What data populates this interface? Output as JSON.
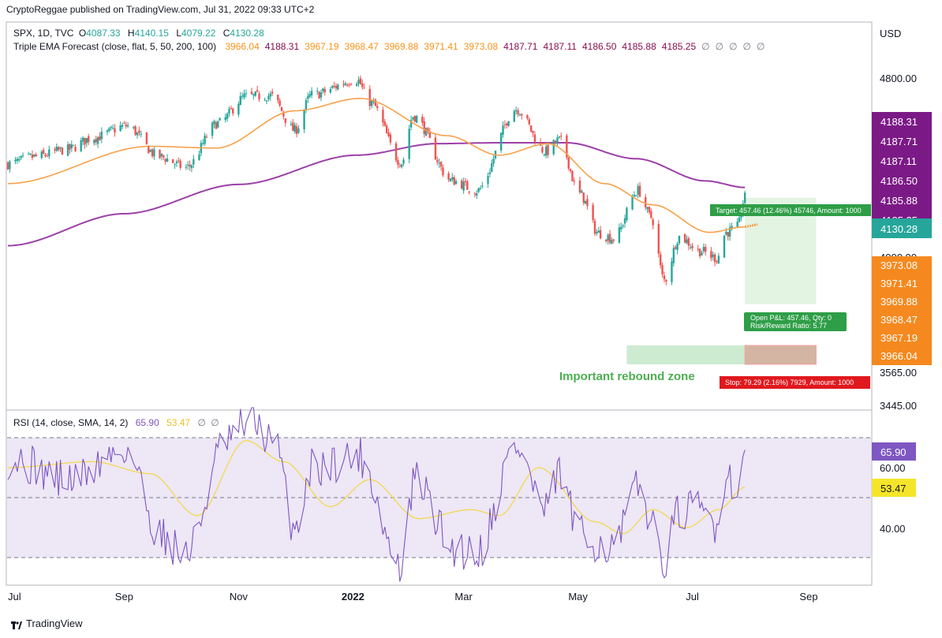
{
  "attribution": "CryptoReggae published on TradingView.com, Jul 31, 2022 09:33 UTC+2",
  "footer_brand": "TradingView",
  "header": {
    "symbol": "SPX, 1D, TVC",
    "ohlc": [
      {
        "label": "O",
        "value": "4087.33"
      },
      {
        "label": "H",
        "value": "4140.15"
      },
      {
        "label": "L",
        "value": "4079.22"
      },
      {
        "label": "C",
        "value": "4130.28"
      }
    ],
    "indicator": "Triple EMA Forecast (close, flat, 5, 50, 200, 100)",
    "indicator_values": [
      {
        "v": "3966.04",
        "color": "#f7931a"
      },
      {
        "v": "4188.31",
        "color": "#880e4f"
      },
      {
        "v": "3967.19",
        "color": "#f7931a"
      },
      {
        "v": "3968.47",
        "color": "#f7931a"
      },
      {
        "v": "3969.88",
        "color": "#f7931a"
      },
      {
        "v": "3971.41",
        "color": "#f7931a"
      },
      {
        "v": "3973.08",
        "color": "#f7931a"
      },
      {
        "v": "4187.71",
        "color": "#880e4f"
      },
      {
        "v": "4187.11",
        "color": "#880e4f"
      },
      {
        "v": "4186.50",
        "color": "#880e4f"
      },
      {
        "v": "4185.88",
        "color": "#880e4f"
      },
      {
        "v": "4185.25",
        "color": "#880e4f"
      },
      {
        "v": "∅",
        "color": "#787b86"
      },
      {
        "v": "∅",
        "color": "#787b86"
      },
      {
        "v": "∅",
        "color": "#787b86"
      },
      {
        "v": "∅",
        "color": "#787b86"
      },
      {
        "v": "∅",
        "color": "#787b86"
      }
    ],
    "rsi_title": "RSI (14, close, SMA, 14, 2)",
    "rsi_value": "65.90",
    "rsi_sma_value": "53.47"
  },
  "colors": {
    "up": "#26a69a",
    "down": "#ef5350",
    "ema50": "#f7a14a",
    "ema200": "#9c3fa8",
    "rsi": "#7e57c2",
    "rsi_sma": "#f5d742",
    "rsi_band": "#ede7f6",
    "target": "#4caf50",
    "stop": "#f44336"
  },
  "chart_data": {
    "type": "candlestick",
    "symbol": "SPX",
    "interval": "1D",
    "currency": "USD",
    "y_ticks": [
      "4800.00",
      "4000.00",
      "3565.00",
      "3445.00"
    ],
    "x_ticks": [
      "Jul",
      "Sep",
      "Nov",
      "2022",
      "Mar",
      "May",
      "Jul",
      "Sep"
    ],
    "last_close": "4130.28",
    "ema_fast_labels": [
      "3973.08",
      "3971.41",
      "3969.88",
      "3968.47",
      "3967.19",
      "3966.04"
    ],
    "ema_slow_labels": [
      "4188.31",
      "4187.71",
      "4187.11",
      "4186.50",
      "4185.88",
      "4185.25"
    ],
    "anchors": [
      {
        "date": "2021-07-01",
        "close": 4320
      },
      {
        "date": "2021-07-15",
        "close": 4360
      },
      {
        "date": "2021-08-01",
        "close": 4400
      },
      {
        "date": "2021-08-16",
        "close": 4470
      },
      {
        "date": "2021-09-02",
        "close": 4535
      },
      {
        "date": "2021-09-20",
        "close": 4360
      },
      {
        "date": "2021-10-04",
        "close": 4300
      },
      {
        "date": "2021-10-21",
        "close": 4550
      },
      {
        "date": "2021-11-05",
        "close": 4700
      },
      {
        "date": "2021-11-18",
        "close": 4705
      },
      {
        "date": "2021-12-01",
        "close": 4510
      },
      {
        "date": "2021-12-10",
        "close": 4710
      },
      {
        "date": "2022-01-03",
        "close": 4795
      },
      {
        "date": "2022-01-10",
        "close": 4670
      },
      {
        "date": "2022-01-27",
        "close": 4330
      },
      {
        "date": "2022-02-02",
        "close": 4590
      },
      {
        "date": "2022-02-23",
        "close": 4225
      },
      {
        "date": "2022-03-08",
        "close": 4170
      },
      {
        "date": "2022-03-29",
        "close": 4630
      },
      {
        "date": "2022-04-14",
        "close": 4390
      },
      {
        "date": "2022-04-21",
        "close": 4455
      },
      {
        "date": "2022-05-02",
        "close": 4150
      },
      {
        "date": "2022-05-12",
        "close": 3930
      },
      {
        "date": "2022-05-20",
        "close": 3900
      },
      {
        "date": "2022-06-02",
        "close": 4170
      },
      {
        "date": "2022-06-09",
        "close": 4020
      },
      {
        "date": "2022-06-16",
        "close": 3665
      },
      {
        "date": "2022-06-24",
        "close": 3910
      },
      {
        "date": "2022-07-05",
        "close": 3830
      },
      {
        "date": "2022-07-14",
        "close": 3790
      },
      {
        "date": "2022-07-19",
        "close": 3935
      },
      {
        "date": "2022-07-25",
        "close": 3965
      },
      {
        "date": "2022-07-29",
        "close": 4130
      }
    ],
    "ema50_anchors": [
      {
        "date": "2021-07-01",
        "value": 4210
      },
      {
        "date": "2021-09-15",
        "value": 4420
      },
      {
        "date": "2021-10-20",
        "value": 4410
      },
      {
        "date": "2021-12-01",
        "value": 4620
      },
      {
        "date": "2022-01-05",
        "value": 4690
      },
      {
        "date": "2022-02-20",
        "value": 4480
      },
      {
        "date": "2022-03-20",
        "value": 4370
      },
      {
        "date": "2022-04-15",
        "value": 4435
      },
      {
        "date": "2022-05-15",
        "value": 4210
      },
      {
        "date": "2022-06-10",
        "value": 4090
      },
      {
        "date": "2022-07-10",
        "value": 3935
      },
      {
        "date": "2022-07-29",
        "value": 3966
      }
    ],
    "ema200_anchors": [
      {
        "date": "2021-07-01",
        "value": 3860
      },
      {
        "date": "2021-09-01",
        "value": 4040
      },
      {
        "date": "2021-11-01",
        "value": 4205
      },
      {
        "date": "2022-01-03",
        "value": 4370
      },
      {
        "date": "2022-02-15",
        "value": 4435
      },
      {
        "date": "2022-03-20",
        "value": 4440
      },
      {
        "date": "2022-04-25",
        "value": 4440
      },
      {
        "date": "2022-06-01",
        "value": 4350
      },
      {
        "date": "2022-07-08",
        "value": 4225
      },
      {
        "date": "2022-07-29",
        "value": 4188
      }
    ],
    "rsi_pane": {
      "title": "RSI (14, close, SMA, 14, 2)",
      "levels": [
        70,
        50,
        30
      ],
      "y_ticks": [
        "60.00",
        "40.00"
      ],
      "rsi_last": "65.90",
      "sma_last": "53.47",
      "rsi_anchors": [
        {
          "date": "2021-07-01",
          "value": 63
        },
        {
          "date": "2021-08-03",
          "value": 56
        },
        {
          "date": "2021-09-02",
          "value": 66
        },
        {
          "date": "2021-09-20",
          "value": 38
        },
        {
          "date": "2021-10-04",
          "value": 31
        },
        {
          "date": "2021-10-25",
          "value": 68
        },
        {
          "date": "2021-11-08",
          "value": 76
        },
        {
          "date": "2021-11-20",
          "value": 68
        },
        {
          "date": "2021-12-01",
          "value": 40
        },
        {
          "date": "2021-12-10",
          "value": 60
        },
        {
          "date": "2022-01-04",
          "value": 64
        },
        {
          "date": "2022-01-27",
          "value": 26
        },
        {
          "date": "2022-02-03",
          "value": 56
        },
        {
          "date": "2022-02-24",
          "value": 33
        },
        {
          "date": "2022-03-08",
          "value": 32
        },
        {
          "date": "2022-03-29",
          "value": 67
        },
        {
          "date": "2022-04-14",
          "value": 45
        },
        {
          "date": "2022-04-21",
          "value": 58
        },
        {
          "date": "2022-05-02",
          "value": 37
        },
        {
          "date": "2022-05-20",
          "value": 33
        },
        {
          "date": "2022-06-02",
          "value": 53
        },
        {
          "date": "2022-06-16",
          "value": 30
        },
        {
          "date": "2022-06-24",
          "value": 45
        },
        {
          "date": "2022-07-05",
          "value": 46
        },
        {
          "date": "2022-07-14",
          "value": 41
        },
        {
          "date": "2022-07-19",
          "value": 58
        },
        {
          "date": "2022-07-25",
          "value": 53
        },
        {
          "date": "2022-07-29",
          "value": 65.9
        }
      ],
      "sma_anchors": [
        {
          "date": "2021-07-01",
          "value": 60
        },
        {
          "date": "2021-08-15",
          "value": 62
        },
        {
          "date": "2021-09-15",
          "value": 58
        },
        {
          "date": "2021-10-10",
          "value": 44
        },
        {
          "date": "2021-11-05",
          "value": 69
        },
        {
          "date": "2021-11-25",
          "value": 62
        },
        {
          "date": "2021-12-20",
          "value": 47
        },
        {
          "date": "2022-01-10",
          "value": 56
        },
        {
          "date": "2022-02-05",
          "value": 43
        },
        {
          "date": "2022-03-05",
          "value": 46
        },
        {
          "date": "2022-03-20",
          "value": 44
        },
        {
          "date": "2022-04-10",
          "value": 60
        },
        {
          "date": "2022-05-10",
          "value": 42
        },
        {
          "date": "2022-05-25",
          "value": 38
        },
        {
          "date": "2022-06-10",
          "value": 46
        },
        {
          "date": "2022-06-28",
          "value": 40
        },
        {
          "date": "2022-07-15",
          "value": 46
        },
        {
          "date": "2022-07-29",
          "value": 53.47
        }
      ]
    },
    "position": {
      "entry": 3966,
      "target": 4130,
      "stop": 3950,
      "rebound_zone": [
        3800,
        3880
      ],
      "start_date": "2022-07-29",
      "end_date": "2022-09-05",
      "zone_start_date": "2022-05-27"
    }
  },
  "annotations": {
    "target_label": "Target: 457.46 (12.46%) 45746, Amount: 1000",
    "pnl_label": "Open P&L: 457.46, Qty: 0",
    "rr_label": "Risk/Reward Ratio: 5.77",
    "stop_label": "Stop: 79.29 (2.16%) 7929, Amount: 1000",
    "rebound_zone_label": "Important rebound zone"
  }
}
